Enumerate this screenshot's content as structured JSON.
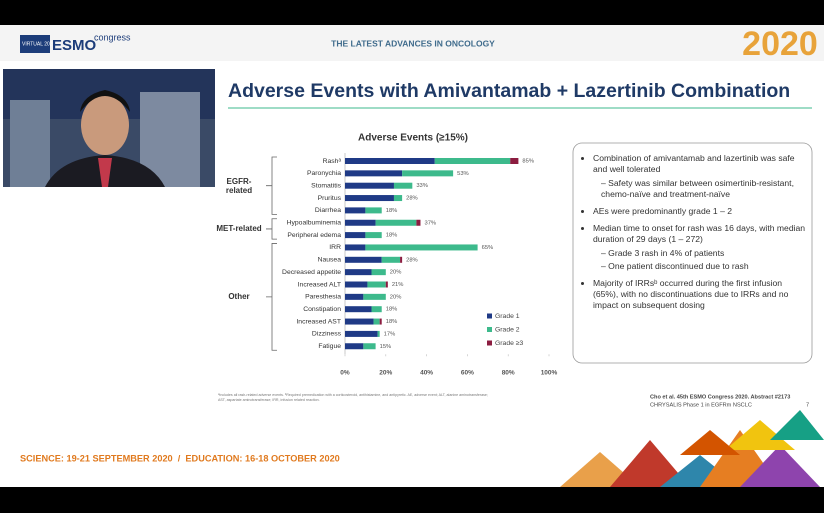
{
  "header": {
    "logo_virtual": "VIRTUAL 2020",
    "logo_esmo": "ESMO",
    "logo_congress": "congress",
    "tagline": "THE LATEST ADVANCES IN ONCOLOGY",
    "year": "2020"
  },
  "slide_title": "Adverse Events with Amivantamab + Lazertinib Combination",
  "chart_data": {
    "type": "bar",
    "orientation": "horizontal",
    "stacked": true,
    "title": "Adverse Events (≥15%)",
    "categories": [
      "Rashᵃ",
      "Paronychia",
      "Stomatitis",
      "Pruritus",
      "Diarrhea",
      "Hypoalbuminemia",
      "Peripheral edema",
      "IRR",
      "Nausea",
      "Decreased appetite",
      "Increased ALT",
      "Paresthesia",
      "Constipation",
      "Increased AST",
      "Dizziness",
      "Fatigue"
    ],
    "groups": [
      {
        "name": "EGFR-related",
        "categories": [
          0,
          1,
          2,
          3,
          4
        ]
      },
      {
        "name": "MET-related",
        "categories": [
          5,
          6
        ]
      },
      {
        "name": "Other",
        "categories": [
          7,
          8,
          9,
          10,
          11,
          12,
          13,
          14,
          15
        ]
      }
    ],
    "series": [
      {
        "name": "Grade 1",
        "color": "#1f3a86",
        "values": [
          44,
          28,
          24,
          24,
          10,
          15,
          10,
          10,
          18,
          13,
          11,
          9,
          13,
          14,
          16,
          9
        ]
      },
      {
        "name": "Grade 2",
        "color": "#3dba8c",
        "values": [
          37,
          25,
          9,
          4,
          8,
          20,
          8,
          55,
          9,
          7,
          9,
          11,
          5,
          3,
          1,
          6
        ]
      },
      {
        "name": "Grade ≥3",
        "color": "#8c1c40",
        "values": [
          4,
          0,
          0,
          0,
          0,
          2,
          0,
          0,
          1,
          0,
          1,
          0,
          0,
          1,
          0,
          0
        ]
      }
    ],
    "totals": [
      85,
      53,
      33,
      28,
      18,
      37,
      18,
      65,
      28,
      20,
      21,
      20,
      18,
      18,
      17,
      15
    ],
    "total_labels": [
      "85%",
      "53%",
      "33%",
      "28%",
      "18%",
      "37%",
      "18%",
      "65%",
      "28%",
      "20%",
      "21%",
      "20%",
      "18%",
      "18%",
      "17%",
      "15%"
    ],
    "xlim": [
      0,
      100
    ],
    "xticks": [
      {
        "value": 0,
        "label": "0%"
      },
      {
        "value": 20,
        "label": "20%"
      },
      {
        "value": 40,
        "label": "40%"
      },
      {
        "value": 60,
        "label": "60%"
      },
      {
        "value": 80,
        "label": "80%"
      },
      {
        "value": 100,
        "label": "100%"
      }
    ],
    "grid": false,
    "legend": "lower right"
  },
  "notes": [
    {
      "text": "Combination of amivantamab and lazertinib was safe and well tolerated",
      "sub": [
        "Safety was similar between osimertinib-resistant, chemo-naïve and treatment-naïve"
      ]
    },
    {
      "text": "AEs were predominantly grade 1 – 2",
      "sub": []
    },
    {
      "text": "Median time to onset for rash was 16 days, with median duration of 29 days (1 – 272)",
      "sub": [
        "Grade 3 rash in 4% of patients",
        "One patient discontinued due to rash"
      ]
    },
    {
      "text": "Majority of IRRsᵇ occurred during the first infusion (65%), with no discontinuations due to IRRs and no impact on subsequent dosing",
      "sub": []
    }
  ],
  "footnote": "ᵃIncludes all rash-related adverse events. ᵇRequired premedication with a corticosteroid, antihistamine, and antipyretic. AE, adverse event; ALT, alanine aminotransferase; AST, aspartate aminotransferase; IRR, infusion related reaction.",
  "citation": "Cho et al. 45th ESMO Congress 2020. Abstract #2173",
  "study": "CHRYSALIS Phase 1 in EGFRm NSCLC",
  "page_number": "7",
  "dates": "SCIENCE: 19-21 SEPTEMBER 2020  /  EDUCATION: 16-18 OCTOBER 2020"
}
